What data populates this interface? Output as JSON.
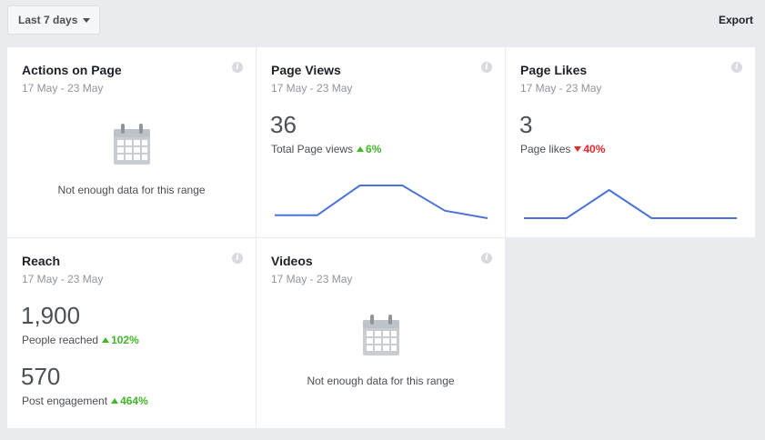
{
  "toolbar": {
    "range_label": "Last 7 days",
    "export_label": "Export"
  },
  "colors": {
    "sparkline": "#4a72d8",
    "up": "#42b72a",
    "down": "#e9262d"
  },
  "cards": {
    "actions": {
      "title": "Actions on Page",
      "date": "17 May - 23 May",
      "empty": "Not enough data for this range"
    },
    "views": {
      "title": "Page Views",
      "date": "17 May - 23 May",
      "value": "36",
      "label": "Total Page views",
      "change": "6%",
      "trend": "up",
      "spark": [
        1,
        1,
        2,
        2,
        1.15,
        0.9
      ]
    },
    "likes": {
      "title": "Page Likes",
      "date": "17 May - 23 May",
      "value": "3",
      "label": "Page likes",
      "change": "40%",
      "trend": "down",
      "spark": [
        0,
        0,
        1,
        0,
        0,
        0
      ]
    },
    "reach": {
      "title": "Reach",
      "date": "17 May - 23 May",
      "value1": "1,900",
      "label1": "People reached",
      "change1": "102%",
      "value2": "570",
      "label2": "Post engagement",
      "change2": "464%"
    },
    "videos": {
      "title": "Videos",
      "date": "17 May - 23 May",
      "empty": "Not enough data for this range"
    }
  }
}
